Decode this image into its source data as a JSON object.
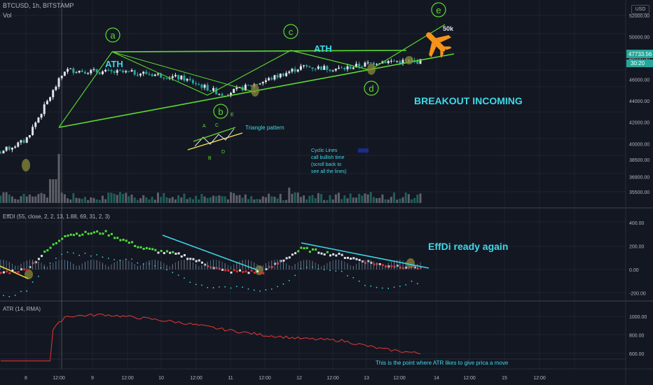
{
  "header": {
    "symbol_line": "BTCUSD, 1h, BITSTAMP",
    "volume_label": "Vol",
    "effdi_label": "EffDI (55, close, 2, 2, 13, 1.88, 69, 31, 2, 3)",
    "atr_label": "ATR (14, RMA)",
    "currency_badge": "USD"
  },
  "price_badges": {
    "last_price": "47733.56",
    "countdown": "30:20"
  },
  "annotations": {
    "a": "a",
    "b": "b",
    "c": "c",
    "d": "d",
    "e": "e",
    "ath1": "ATH",
    "ath2": "ATH",
    "target": "50k",
    "breakout": "BREAKOUT INCOMING",
    "triangle": "Triangle pattern",
    "tri_A": "A",
    "tri_B": "B",
    "tri_C": "C",
    "tri_D": "D",
    "tri_E": "E",
    "cyclic": [
      "Cyclic Lines",
      "call bullish time",
      "(scroll back to",
      "see all the lines)"
    ],
    "effdi_note": "EffDi ready again",
    "atr_note": "This is the point where ATR likes to give prica a move"
  },
  "chart_data": [
    {
      "type": "line",
      "panel": "price",
      "y_ticks": [
        "52000.00",
        "50000.00",
        "48000.00",
        "47733.56",
        "46000.00",
        "44000.00",
        "42000.00",
        "40000.00",
        "38500.00",
        "36900.00",
        "35500.00"
      ],
      "x_ticks": [
        "8",
        "12:00",
        "9",
        "12:00",
        "10",
        "12:00",
        "11",
        "12:00",
        "12",
        "12:00",
        "13",
        "12:00",
        "14",
        "12:00",
        "15",
        "12:00"
      ],
      "x": [
        "8 00:00",
        "8 12:00",
        "9 00:00",
        "9 12:00",
        "10 00:00",
        "10 12:00",
        "11 00:00",
        "11 12:00",
        "12 00:00",
        "12 12:00",
        "13 00:00",
        "13 12:00"
      ],
      "series": [
        {
          "values": [
            38600,
            40300,
            46900,
            46700,
            46600,
            46100,
            44600,
            45800,
            47200,
            47000,
            47700,
            47700
          ]
        }
      ]
    },
    {
      "type": "line",
      "panel": "effdi",
      "y_ticks": [
        "400.00",
        "200.00",
        "0.00",
        "-200.00"
      ],
      "series": [
        {
          "values": [
            -40,
            0,
            300,
            320,
            180,
            120,
            -10,
            -20,
            180,
            120,
            40,
            20
          ]
        }
      ]
    },
    {
      "type": "line",
      "panel": "atr",
      "y_ticks": [
        "1000.00",
        "800.00",
        "600.00"
      ],
      "series": [
        {
          "values": [
            520,
            520,
            1000,
            1020,
            980,
            930,
            860,
            800,
            760,
            740,
            650,
            600
          ]
        }
      ]
    }
  ],
  "colors": {
    "background": "#131722",
    "grid": "#1f2330",
    "up_candle": "#e0e3eb",
    "down_candle": "#26a69a",
    "green_lines": "#5cdb2e",
    "cyan": "#3fd8e8",
    "orange": "#f7931a",
    "atr_line": "#e53935",
    "price_badge": "#26a69a"
  }
}
